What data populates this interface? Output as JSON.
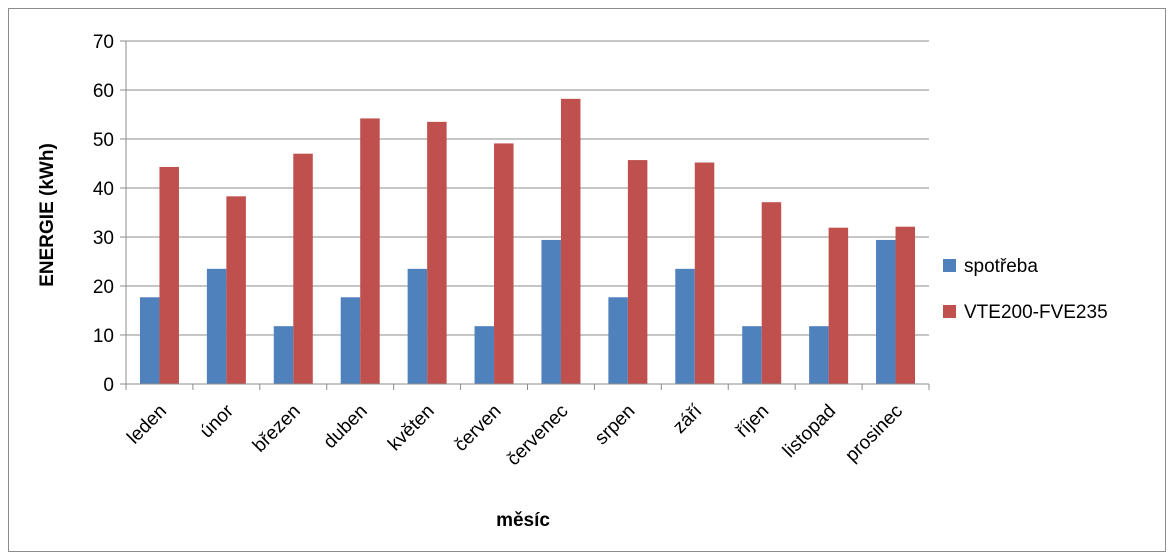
{
  "chart_data": {
    "type": "bar",
    "title": "",
    "xlabel": "měsíc",
    "ylabel": "ENERGIE (kWh)",
    "ylim": [
      0,
      70
    ],
    "yticks": [
      0,
      10,
      20,
      30,
      40,
      50,
      60,
      70
    ],
    "grid": true,
    "legend_position": "right",
    "categories": [
      "leden",
      "únor",
      "březen",
      "duben",
      "květen",
      "červen",
      "červenec",
      "srpen",
      "září",
      "říjen",
      "listopad",
      "prosinec"
    ],
    "series": [
      {
        "name": "spotřeba",
        "color": "#4f81bd",
        "values": [
          17.7,
          23.5,
          11.8,
          17.7,
          23.5,
          11.8,
          29.4,
          17.7,
          23.5,
          11.8,
          11.8,
          29.4
        ]
      },
      {
        "name": "VTE200-FVE235",
        "color": "#c0504d",
        "values": [
          44.3,
          38.3,
          47.0,
          54.2,
          53.5,
          49.1,
          58.2,
          45.7,
          45.2,
          37.1,
          31.9,
          32.1
        ]
      }
    ]
  }
}
